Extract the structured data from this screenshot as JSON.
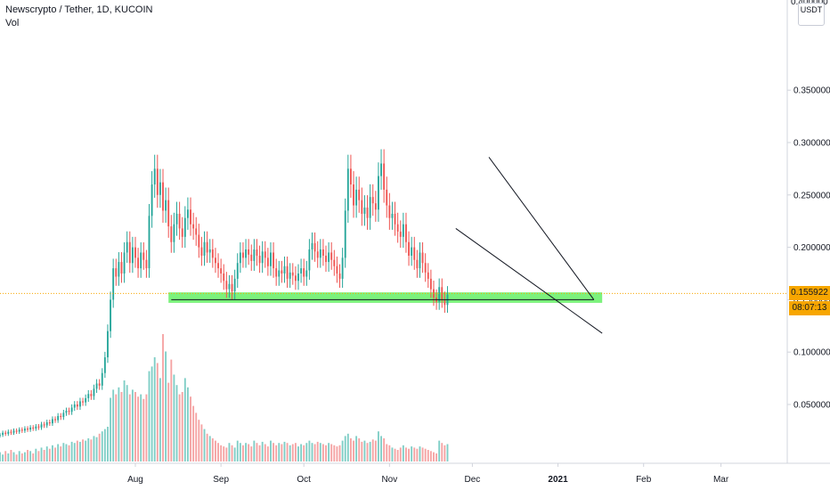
{
  "legend": {
    "symbol_line": "Newscrypto / Tether, 1D, KUCOIN",
    "volume_label": "Vol"
  },
  "currency_label": "USDT",
  "price_axis_top_partial": "0.400000",
  "current_price": "0.155922",
  "countdown": "08:07:13",
  "colors": {
    "up": "#26a69a",
    "down": "#ef5350",
    "up_volume": "#7fcec6",
    "down_volume": "#f5a3a3",
    "support_zone": "#7cf27c",
    "price_badge": "#f7a600",
    "trendline": "#131722"
  },
  "chart_data": {
    "type": "candlestick",
    "title": "Newscrypto / Tether, 1D, KUCOIN",
    "y_ticks": [
      "0.350000",
      "0.300000",
      "0.250000",
      "0.200000",
      "0.150000",
      "0.100000",
      "0.050000"
    ],
    "y_tick_values": [
      0.35,
      0.3,
      0.25,
      0.2,
      0.15,
      0.1,
      0.05
    ],
    "ylim": [
      0.0,
      0.4
    ],
    "x_ticks": [
      "Aug",
      "Sep",
      "Oct",
      "Nov",
      "Dec",
      "2021",
      "Feb",
      "Mar"
    ],
    "x_tick_dates": [
      "2020-08-01",
      "2020-09-01",
      "2020-10-01",
      "2020-11-01",
      "2020-12-01",
      "2021-01-01",
      "2021-02-01",
      "2021-03-01"
    ],
    "x_range": [
      "2020-06-13",
      "2021-03-25"
    ],
    "candles": {
      "start_date": "2020-06-13",
      "close": [
        0.021,
        0.023,
        0.022,
        0.024,
        0.023,
        0.025,
        0.024,
        0.026,
        0.025,
        0.027,
        0.026,
        0.028,
        0.027,
        0.029,
        0.028,
        0.031,
        0.03,
        0.033,
        0.032,
        0.036,
        0.035,
        0.039,
        0.038,
        0.042,
        0.044,
        0.043,
        0.047,
        0.05,
        0.048,
        0.053,
        0.052,
        0.056,
        0.06,
        0.058,
        0.065,
        0.07,
        0.068,
        0.08,
        0.095,
        0.12,
        0.15,
        0.18,
        0.172,
        0.186,
        0.175,
        0.195,
        0.205,
        0.185,
        0.2,
        0.19,
        0.18,
        0.195,
        0.188,
        0.18,
        0.23,
        0.26,
        0.275,
        0.25,
        0.262,
        0.235,
        0.245,
        0.22,
        0.205,
        0.222,
        0.232,
        0.218,
        0.21,
        0.228,
        0.236,
        0.222,
        0.218,
        0.212,
        0.2,
        0.192,
        0.205,
        0.195,
        0.198,
        0.19,
        0.185,
        0.18,
        0.175,
        0.168,
        0.16,
        0.165,
        0.158,
        0.17,
        0.185,
        0.195,
        0.19,
        0.198,
        0.193,
        0.187,
        0.198,
        0.192,
        0.185,
        0.196,
        0.19,
        0.182,
        0.195,
        0.18,
        0.172,
        0.178,
        0.175,
        0.182,
        0.17,
        0.176,
        0.173,
        0.168,
        0.175,
        0.18,
        0.172,
        0.178,
        0.198,
        0.204,
        0.196,
        0.19,
        0.198,
        0.192,
        0.186,
        0.195,
        0.188,
        0.182,
        0.175,
        0.17,
        0.19,
        0.235,
        0.275,
        0.26,
        0.24,
        0.255,
        0.245,
        0.232,
        0.238,
        0.228,
        0.248,
        0.242,
        0.236,
        0.268,
        0.28,
        0.255,
        0.24,
        0.228,
        0.232,
        0.222,
        0.215,
        0.21,
        0.222,
        0.205,
        0.192,
        0.2,
        0.188,
        0.18,
        0.195,
        0.185,
        0.176,
        0.17,
        0.16,
        0.152,
        0.148,
        0.162,
        0.15,
        0.145,
        0.155
      ]
    },
    "volume": [
      0.008,
      0.006,
      0.009,
      0.007,
      0.01,
      0.008,
      0.006,
      0.009,
      0.007,
      0.008,
      0.01,
      0.009,
      0.007,
      0.011,
      0.009,
      0.012,
      0.01,
      0.013,
      0.011,
      0.014,
      0.012,
      0.015,
      0.013,
      0.016,
      0.015,
      0.014,
      0.017,
      0.016,
      0.018,
      0.017,
      0.019,
      0.018,
      0.02,
      0.019,
      0.022,
      0.021,
      0.024,
      0.026,
      0.028,
      0.03,
      0.055,
      0.062,
      0.058,
      0.064,
      0.06,
      0.07,
      0.066,
      0.058,
      0.062,
      0.06,
      0.056,
      0.058,
      0.054,
      0.058,
      0.078,
      0.082,
      0.09,
      0.085,
      0.072,
      0.11,
      0.095,
      0.068,
      0.088,
      0.075,
      0.066,
      0.058,
      0.06,
      0.072,
      0.064,
      0.056,
      0.048,
      0.042,
      0.036,
      0.032,
      0.028,
      0.024,
      0.022,
      0.02,
      0.018,
      0.016,
      0.014,
      0.013,
      0.012,
      0.016,
      0.014,
      0.012,
      0.018,
      0.016,
      0.014,
      0.016,
      0.015,
      0.013,
      0.018,
      0.016,
      0.014,
      0.017,
      0.015,
      0.013,
      0.018,
      0.016,
      0.014,
      0.016,
      0.015,
      0.017,
      0.016,
      0.014,
      0.015,
      0.016,
      0.013,
      0.015,
      0.014,
      0.016,
      0.018,
      0.016,
      0.015,
      0.017,
      0.016,
      0.015,
      0.014,
      0.016,
      0.015,
      0.014,
      0.013,
      0.014,
      0.018,
      0.022,
      0.024,
      0.02,
      0.018,
      0.022,
      0.02,
      0.017,
      0.018,
      0.016,
      0.017,
      0.019,
      0.018,
      0.026,
      0.022,
      0.02,
      0.015,
      0.014,
      0.012,
      0.011,
      0.01,
      0.012,
      0.014,
      0.012,
      0.011,
      0.013,
      0.012,
      0.011,
      0.013,
      0.012,
      0.011,
      0.01,
      0.009,
      0.008,
      0.007,
      0.018,
      0.016,
      0.014,
      0.015
    ],
    "support_zone": {
      "from": "2020-08-13",
      "to": "2021-01-17",
      "low": 0.147,
      "high": 0.157
    },
    "support_line": {
      "from": "2020-08-14",
      "to": "2021-01-14",
      "value": 0.15
    },
    "wedge_upper": {
      "from": [
        "2020-12-07",
        0.286
      ],
      "to": [
        "2021-01-14",
        0.15
      ]
    },
    "wedge_lower": {
      "from": [
        "2020-11-25",
        0.218
      ],
      "to": [
        "2021-01-17",
        0.118
      ]
    },
    "current_price_value": 0.155922
  }
}
